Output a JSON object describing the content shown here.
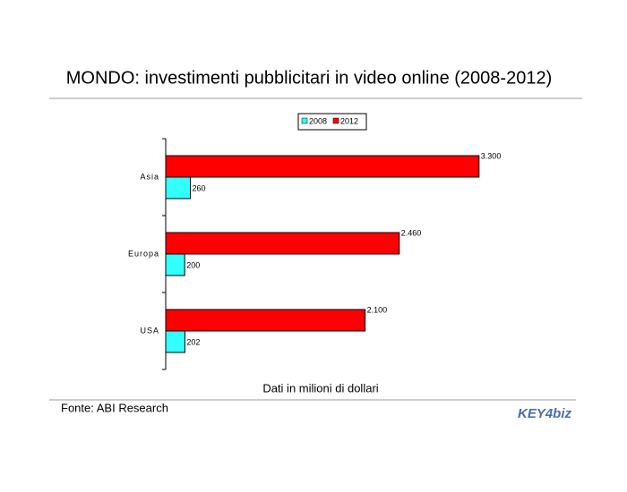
{
  "chart_data": {
    "type": "bar",
    "orientation": "horizontal",
    "title": "MONDO: investimenti pubblicitari in video online (2008-2012)",
    "categories": [
      "Asia",
      "Europa",
      "USA"
    ],
    "series": [
      {
        "name": "2008",
        "color": "#33ffff",
        "values": [
          260,
          200,
          202
        ]
      },
      {
        "name": "2012",
        "color": "#ff0000",
        "values": [
          3300,
          2460,
          2100
        ],
        "value_labels": [
          "3.300",
          "2.460",
          "2.100"
        ]
      }
    ],
    "xlim": [
      0,
      3500
    ],
    "xlabel": "Dati in milioni di dollari",
    "source": "Fonte: ABI Research",
    "logo": "KEY4biz",
    "legend": "top"
  }
}
